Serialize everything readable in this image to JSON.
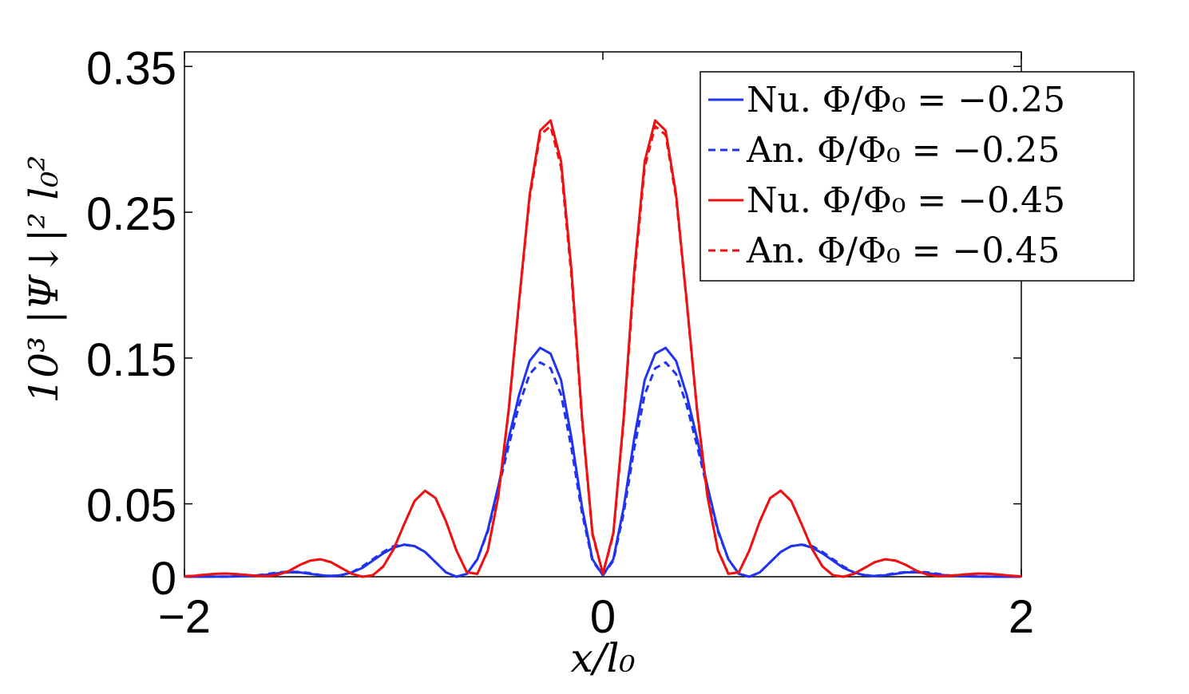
{
  "chart_data": {
    "type": "line",
    "xlabel": "x/l₀",
    "ylabel": "10³ |Ψ↓|² l₀²",
    "xlim": [
      -2,
      2
    ],
    "ylim": [
      0,
      0.36
    ],
    "xticks": [
      -2,
      0,
      2
    ],
    "xtick_labels": [
      "−2",
      "0",
      "2"
    ],
    "yticks": [
      0,
      0.05,
      0.15,
      0.25,
      0.35
    ],
    "ytick_labels": [
      "0",
      "0.05",
      "0.15",
      "0.25",
      "0.35"
    ],
    "grid": false,
    "legend_position": "top-right",
    "series": [
      {
        "name": "Nu. Φ/Φ₀ = −0.25",
        "color": "#2233ee",
        "style": "solid",
        "x": [
          0,
          0.05,
          0.1,
          0.15,
          0.2,
          0.25,
          0.3,
          0.35,
          0.4,
          0.45,
          0.5,
          0.55,
          0.6,
          0.65,
          0.7,
          0.75,
          0.8,
          0.85,
          0.9,
          0.95,
          1.0,
          1.05,
          1.1,
          1.15,
          1.2,
          1.25,
          1.3,
          1.35,
          1.4,
          1.45,
          1.5,
          1.55,
          1.6,
          1.65,
          1.7,
          1.75,
          1.8,
          1.85,
          1.9,
          1.95,
          2.0
        ],
        "y": [
          0.001,
          0.012,
          0.048,
          0.095,
          0.135,
          0.153,
          0.157,
          0.148,
          0.125,
          0.095,
          0.062,
          0.032,
          0.012,
          0.002,
          0.0,
          0.003,
          0.01,
          0.017,
          0.021,
          0.022,
          0.02,
          0.016,
          0.011,
          0.006,
          0.003,
          0.001,
          0.0005,
          0.001,
          0.002,
          0.003,
          0.003,
          0.0025,
          0.0015,
          0.0008,
          0.0004,
          0.0002,
          0.0001,
          0.0001,
          0.0,
          0.0,
          0.0
        ]
      },
      {
        "name": "An. Φ/Φ₀ = −0.25",
        "color": "#2233ee",
        "style": "dashed",
        "x": [
          0,
          0.05,
          0.1,
          0.15,
          0.2,
          0.25,
          0.3,
          0.35,
          0.4,
          0.45,
          0.5,
          0.55,
          0.6,
          0.65,
          0.7,
          0.75,
          0.8,
          0.85,
          0.9,
          0.95,
          1.0,
          1.05,
          1.1,
          1.15,
          1.2,
          1.25,
          1.3,
          1.35,
          1.4,
          1.45,
          1.5,
          1.55,
          1.6,
          1.65,
          1.7,
          1.75,
          1.8,
          1.85,
          1.9,
          1.95,
          2.0
        ],
        "y": [
          0.001,
          0.011,
          0.044,
          0.088,
          0.125,
          0.143,
          0.147,
          0.139,
          0.118,
          0.09,
          0.06,
          0.031,
          0.012,
          0.002,
          0.0,
          0.003,
          0.01,
          0.017,
          0.021,
          0.022,
          0.021,
          0.017,
          0.012,
          0.007,
          0.003,
          0.0012,
          0.0006,
          0.0012,
          0.0025,
          0.0033,
          0.0035,
          0.003,
          0.002,
          0.001,
          0.0005,
          0.0003,
          0.0001,
          0.0001,
          0.0,
          0.0,
          0.0
        ]
      },
      {
        "name": "Nu. Φ/Φ₀ = −0.45",
        "color": "#ee1111",
        "style": "solid",
        "x": [
          0,
          0.05,
          0.1,
          0.15,
          0.2,
          0.25,
          0.3,
          0.35,
          0.4,
          0.45,
          0.5,
          0.55,
          0.6,
          0.65,
          0.7,
          0.75,
          0.8,
          0.85,
          0.9,
          0.95,
          1.0,
          1.05,
          1.1,
          1.15,
          1.2,
          1.25,
          1.3,
          1.35,
          1.4,
          1.45,
          1.5,
          1.55,
          1.6,
          1.65,
          1.7,
          1.75,
          1.8,
          1.85,
          1.9,
          1.95,
          2.0
        ],
        "y": [
          0.002,
          0.03,
          0.11,
          0.21,
          0.285,
          0.313,
          0.306,
          0.262,
          0.19,
          0.115,
          0.055,
          0.018,
          0.002,
          0.003,
          0.018,
          0.038,
          0.054,
          0.059,
          0.052,
          0.036,
          0.019,
          0.007,
          0.001,
          0.0,
          0.002,
          0.006,
          0.01,
          0.012,
          0.011,
          0.008,
          0.004,
          0.0015,
          0.0004,
          0.0006,
          0.0012,
          0.0018,
          0.0022,
          0.002,
          0.0014,
          0.0007,
          0.0003
        ]
      },
      {
        "name": "An. Φ/Φ₀ = −0.45",
        "color": "#ee1111",
        "style": "dashed",
        "x": [
          0,
          0.05,
          0.1,
          0.15,
          0.2,
          0.25,
          0.3,
          0.35,
          0.4,
          0.45,
          0.5,
          0.55,
          0.6,
          0.65,
          0.7,
          0.75,
          0.8,
          0.85,
          0.9,
          0.95,
          1.0,
          1.05,
          1.1,
          1.15,
          1.2,
          1.25,
          1.3,
          1.35,
          1.4,
          1.45,
          1.5,
          1.55,
          1.6,
          1.65,
          1.7,
          1.75,
          1.8,
          1.85,
          1.9,
          1.95,
          2.0
        ],
        "y": [
          0.002,
          0.029,
          0.108,
          0.206,
          0.281,
          0.309,
          0.303,
          0.26,
          0.189,
          0.114,
          0.055,
          0.018,
          0.002,
          0.003,
          0.018,
          0.038,
          0.054,
          0.059,
          0.052,
          0.036,
          0.019,
          0.007,
          0.001,
          0.0,
          0.002,
          0.006,
          0.01,
          0.012,
          0.011,
          0.008,
          0.004,
          0.0015,
          0.0004,
          0.0006,
          0.0012,
          0.0018,
          0.0022,
          0.002,
          0.0014,
          0.0007,
          0.0003
        ]
      }
    ],
    "symmetric_about_zero": true
  }
}
